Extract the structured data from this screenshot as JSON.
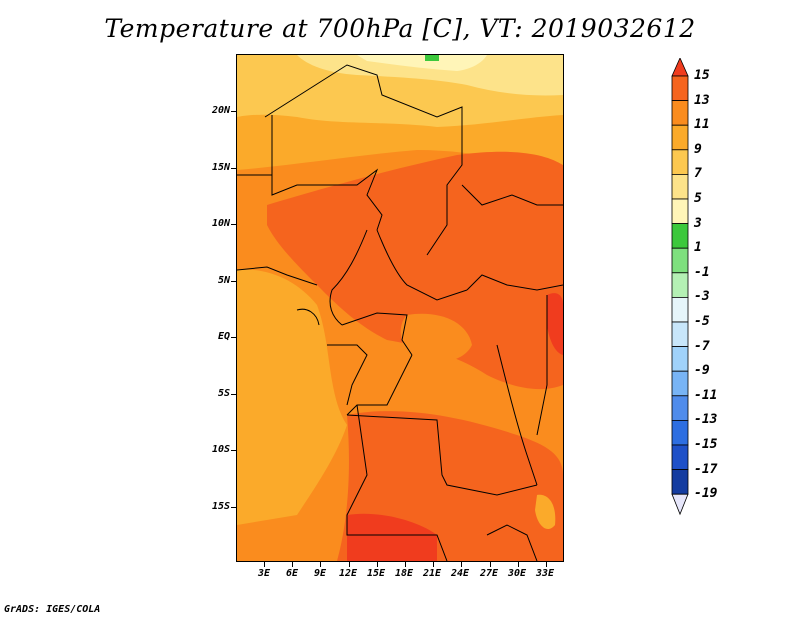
{
  "title": "Temperature at 700hPa [C], VT: 2019032612",
  "credit": "GrADS: IGES/COLA",
  "map": {
    "lat_ticks": [
      "20N",
      "15N",
      "10N",
      "5N",
      "EQ",
      "5S",
      "10S",
      "15S"
    ],
    "lon_ticks": [
      "3E",
      "6E",
      "9E",
      "12E",
      "15E",
      "18E",
      "21E",
      "24E",
      "27E",
      "30E",
      "33E"
    ],
    "lat_range": [
      -20,
      25
    ],
    "lon_range": [
      0,
      35
    ]
  },
  "colorbar": {
    "labels": [
      "15",
      "13",
      "11",
      "9",
      "7",
      "5",
      "3",
      "1",
      "-1",
      "-3",
      "-5",
      "-7",
      "-9",
      "-11",
      "-13",
      "-15",
      "-17",
      "-19"
    ],
    "colors": [
      "#f03c1e",
      "#f5641e",
      "#fa8c1e",
      "#fbaa2a",
      "#fcc850",
      "#fde38a",
      "#fff5b8",
      "#3cc83c",
      "#7ee07e",
      "#b4f0b4",
      "#e6f5fa",
      "#c8e6fa",
      "#a0d2fa",
      "#78b4f5",
      "#508ceb",
      "#2d6ee1",
      "#1e50c8",
      "#143ca0",
      "#0a1e6e"
    ]
  },
  "chart_data": {
    "type": "heatmap",
    "title": "Temperature at 700hPa [C], VT: 2019032612",
    "xlabel": "",
    "ylabel": "",
    "x_ticks": [
      "3E",
      "6E",
      "9E",
      "12E",
      "15E",
      "18E",
      "21E",
      "24E",
      "27E",
      "30E",
      "33E"
    ],
    "y_ticks": [
      "20N",
      "15N",
      "10N",
      "5N",
      "EQ",
      "5S",
      "10S",
      "15S"
    ],
    "colorbar_ticks": [
      15,
      13,
      11,
      9,
      7,
      5,
      3,
      1,
      -1,
      -3,
      -5,
      -7,
      -9,
      -11,
      -13,
      -15,
      -17,
      -19
    ],
    "value_range_shown": [
      3,
      15
    ]
  }
}
